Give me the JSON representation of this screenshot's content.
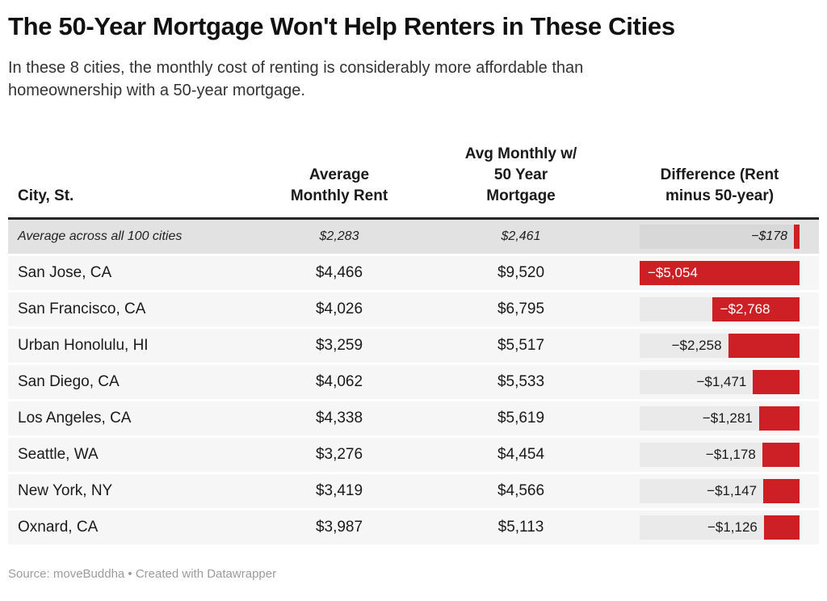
{
  "title": "The 50-Year Mortgage Won't Help Renters in These Cities",
  "subtitle": "In these 8 cities, the monthly cost of renting is considerably more affordable than\nhomeownership with a 50-year mortgage.",
  "footer": "Source: moveBuddha • Created with Datawrapper",
  "colors": {
    "bar_red": "#cc2026",
    "row_bg": "#f6f6f6",
    "track_bg": "#eaeaea",
    "summary_bg": "#e2e2e2",
    "summary_track_bg": "#d8d8d8",
    "rule_dark": "#262626"
  },
  "chart_data": {
    "type": "table",
    "title": "The 50-Year Mortgage Won't Help Renters in These Cities",
    "subtitle": "In these 8 cities, the monthly cost of renting is considerably more affordable than homeownership with a 50-year mortgage.",
    "columns": [
      "City, St.",
      "Average\nMonthly Rent",
      "Avg Monthly w/\n50 Year\nMortgage",
      "Difference (Rent\nminus 50-year)"
    ],
    "bar": {
      "column": "Difference (Rent minus 50-year)",
      "anchor": "right",
      "max_value": 5054,
      "color": "#cc2026"
    },
    "summary_row": {
      "city": "Average across all 100 cities",
      "rent": "$2,283",
      "mortgage": "$2,461",
      "diff_label": "−$178",
      "diff_value": 178,
      "label_inside": false
    },
    "rows": [
      {
        "city": "San Jose, CA",
        "rent": "$4,466",
        "mortgage": "$9,520",
        "diff_label": "−$5,054",
        "diff_value": 5054,
        "label_inside": true
      },
      {
        "city": "San Francisco, CA",
        "rent": "$4,026",
        "mortgage": "$6,795",
        "diff_label": "−$2,768",
        "diff_value": 2768,
        "label_inside": true
      },
      {
        "city": "Urban Honolulu, HI",
        "rent": "$3,259",
        "mortgage": "$5,517",
        "diff_label": "−$2,258",
        "diff_value": 2258,
        "label_inside": false
      },
      {
        "city": "San Diego, CA",
        "rent": "$4,062",
        "mortgage": "$5,533",
        "diff_label": "−$1,471",
        "diff_value": 1471,
        "label_inside": false
      },
      {
        "city": "Los Angeles, CA",
        "rent": "$4,338",
        "mortgage": "$5,619",
        "diff_label": "−$1,281",
        "diff_value": 1281,
        "label_inside": false
      },
      {
        "city": "Seattle, WA",
        "rent": "$3,276",
        "mortgage": "$4,454",
        "diff_label": "−$1,178",
        "diff_value": 1178,
        "label_inside": false
      },
      {
        "city": "New York, NY",
        "rent": "$3,419",
        "mortgage": "$4,566",
        "diff_label": "−$1,147",
        "diff_value": 1147,
        "label_inside": false
      },
      {
        "city": "Oxnard, CA",
        "rent": "$3,987",
        "mortgage": "$5,113",
        "diff_label": "−$1,126",
        "diff_value": 1126,
        "label_inside": false
      }
    ]
  }
}
